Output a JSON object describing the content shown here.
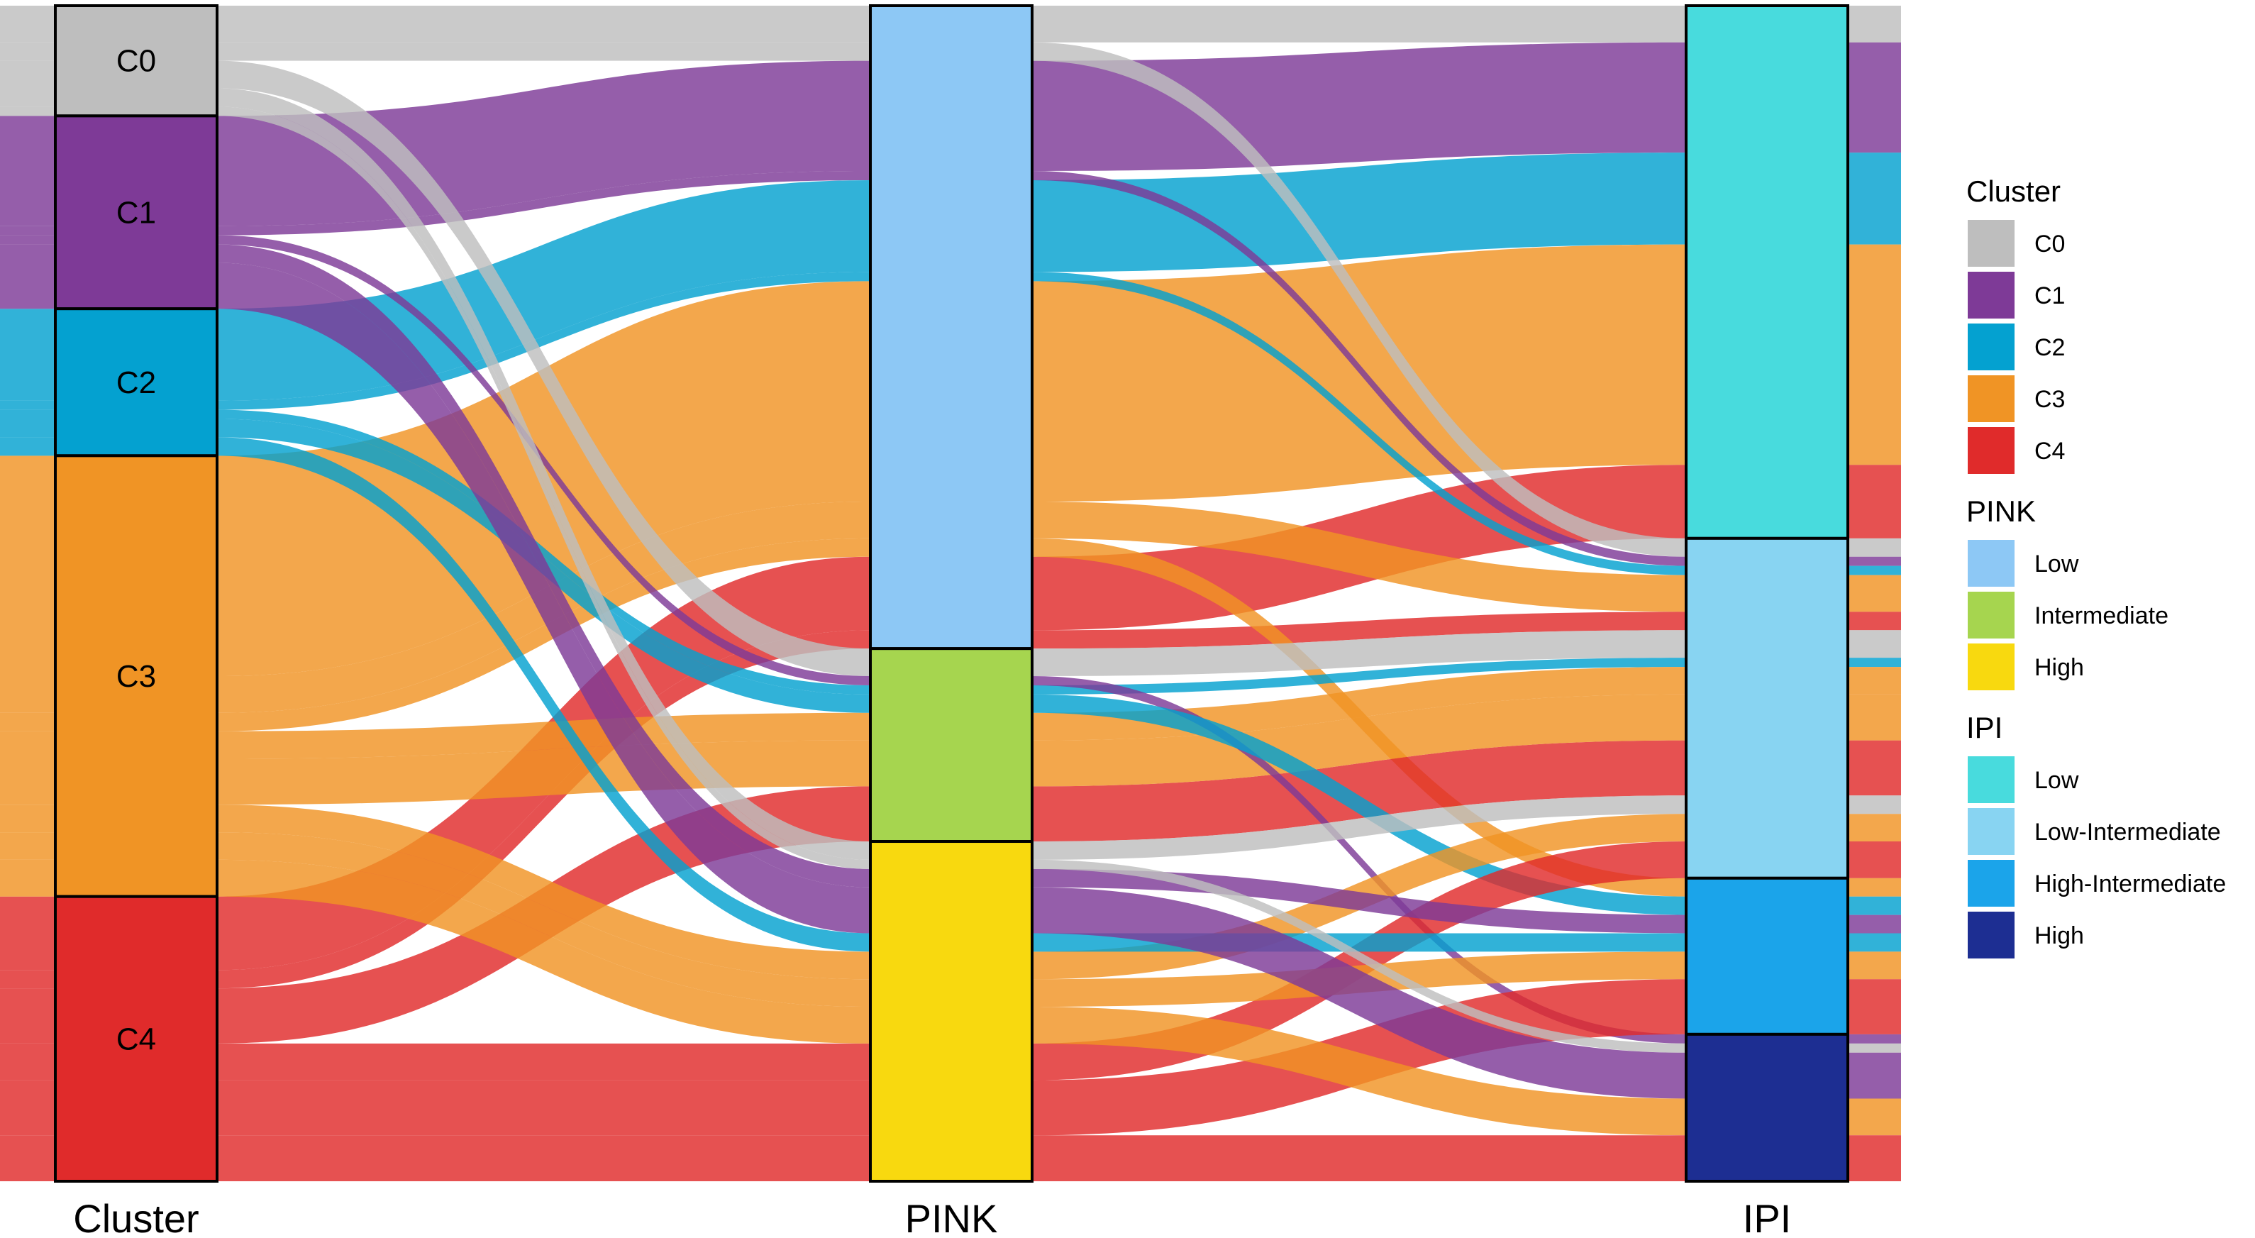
{
  "chart_data": {
    "type": "alluvial",
    "axes": [
      "Cluster",
      "PINK",
      "IPI"
    ],
    "strata": {
      "Cluster": [
        "C0",
        "C1",
        "C2",
        "C3",
        "C4"
      ],
      "PINK": [
        "Low",
        "Intermediate",
        "High"
      ],
      "IPI": [
        "Low",
        "Low-Intermediate",
        "High-Intermediate",
        "High"
      ]
    },
    "flows": [
      {
        "Cluster": "C0",
        "PINK": "Low",
        "IPI": "Low",
        "value": 2
      },
      {
        "Cluster": "C1",
        "PINK": "Low",
        "IPI": "Low",
        "value": 6
      },
      {
        "Cluster": "C2",
        "PINK": "Low",
        "IPI": "Low",
        "value": 5
      },
      {
        "Cluster": "C3",
        "PINK": "Low",
        "IPI": "Low",
        "value": 12
      },
      {
        "Cluster": "C4",
        "PINK": "Low",
        "IPI": "Low",
        "value": 4
      },
      {
        "Cluster": "C0",
        "PINK": "Low",
        "IPI": "Low-Intermediate",
        "value": 1
      },
      {
        "Cluster": "C1",
        "PINK": "Low",
        "IPI": "Low-Intermediate",
        "value": 0.5
      },
      {
        "Cluster": "C2",
        "PINK": "Low",
        "IPI": "Low-Intermediate",
        "value": 0.5
      },
      {
        "Cluster": "C3",
        "PINK": "Low",
        "IPI": "Low-Intermediate",
        "value": 2
      },
      {
        "Cluster": "C4",
        "PINK": "Low",
        "IPI": "Low-Intermediate",
        "value": 1
      },
      {
        "Cluster": "C3",
        "PINK": "Low",
        "IPI": "High-Intermediate",
        "value": 1
      },
      {
        "Cluster": "C0",
        "PINK": "Intermediate",
        "IPI": "Low-Intermediate",
        "value": 1.5
      },
      {
        "Cluster": "C2",
        "PINK": "Intermediate",
        "IPI": "Low-Intermediate",
        "value": 0.5
      },
      {
        "Cluster": "C3",
        "PINK": "Intermediate",
        "IPI": "Low-Intermediate",
        "value": 1.5
      },
      {
        "Cluster": "C4",
        "PINK": "Intermediate",
        "IPI": "Low-Intermediate",
        "value": 3
      },
      {
        "Cluster": "C3",
        "PINK": "Intermediate",
        "IPI": "Low-Intermediate",
        "value": 2.5
      },
      {
        "Cluster": "C1",
        "PINK": "Intermediate",
        "IPI": "High",
        "value": 0.5
      },
      {
        "Cluster": "C2",
        "PINK": "Intermediate",
        "IPI": "High-Intermediate",
        "value": 1
      },
      {
        "Cluster": "C0",
        "PINK": "High",
        "IPI": "Low-Intermediate",
        "value": 1
      },
      {
        "Cluster": "C3",
        "PINK": "High",
        "IPI": "Low-Intermediate",
        "value": 1.5
      },
      {
        "Cluster": "C4",
        "PINK": "High",
        "IPI": "Low-Intermediate",
        "value": 2
      },
      {
        "Cluster": "C1",
        "PINK": "High",
        "IPI": "High-Intermediate",
        "value": 1
      },
      {
        "Cluster": "C2",
        "PINK": "High",
        "IPI": "High-Intermediate",
        "value": 1
      },
      {
        "Cluster": "C3",
        "PINK": "High",
        "IPI": "High-Intermediate",
        "value": 1.5
      },
      {
        "Cluster": "C4",
        "PINK": "High",
        "IPI": "High-Intermediate",
        "value": 3
      },
      {
        "Cluster": "C0",
        "PINK": "High",
        "IPI": "High",
        "value": 0.5
      },
      {
        "Cluster": "C1",
        "PINK": "High",
        "IPI": "High",
        "value": 2.5
      },
      {
        "Cluster": "C3",
        "PINK": "High",
        "IPI": "High",
        "value": 2
      },
      {
        "Cluster": "C4",
        "PINK": "High",
        "IPI": "High",
        "value": 2.5
      }
    ],
    "legends": [
      {
        "title": "Cluster",
        "items": [
          {
            "label": "C0",
            "color": "#BEBEBE"
          },
          {
            "label": "C1",
            "color": "#7E3A97"
          },
          {
            "label": "C2",
            "color": "#04A1D0"
          },
          {
            "label": "C3",
            "color": "#F09425"
          },
          {
            "label": "C4",
            "color": "#E02B2B"
          }
        ]
      },
      {
        "title": "PINK",
        "items": [
          {
            "label": "Low",
            "color": "#8DC8F5"
          },
          {
            "label": "Intermediate",
            "color": "#A6D54F"
          },
          {
            "label": "High",
            "color": "#F8D90F"
          }
        ]
      },
      {
        "title": "IPI",
        "items": [
          {
            "label": "Low",
            "color": "#48DBDD"
          },
          {
            "label": "Low-Intermediate",
            "color": "#88D4F2"
          },
          {
            "label": "High-Intermediate",
            "color": "#1BA4EA"
          },
          {
            "label": "High",
            "color": "#1D2E92"
          }
        ]
      }
    ],
    "flow_opacity": 0.82,
    "legend_position": "right"
  }
}
